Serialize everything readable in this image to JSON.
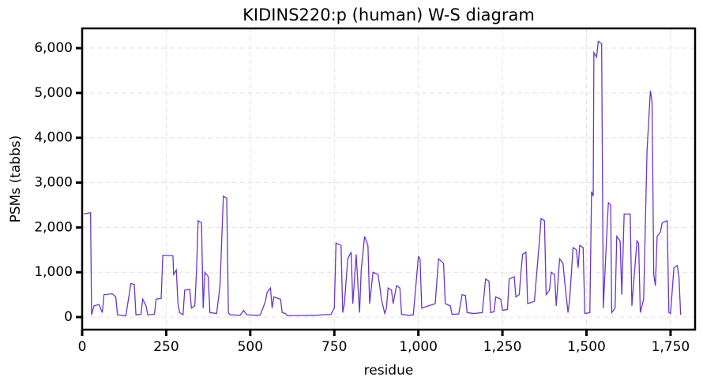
{
  "chart_data": {
    "type": "line",
    "title": "KIDINS220:p (human) W-S diagram",
    "xlabel": "residue",
    "ylabel": "PSMs (tabbs)",
    "x": [
      5,
      25,
      28,
      35,
      50,
      60,
      65,
      90,
      100,
      105,
      130,
      145,
      155,
      160,
      175,
      180,
      190,
      195,
      215,
      220,
      235,
      240,
      270,
      272,
      280,
      285,
      290,
      300,
      305,
      320,
      325,
      335,
      340,
      345,
      355,
      360,
      365,
      375,
      380,
      400,
      410,
      420,
      430,
      435,
      440,
      470,
      480,
      490,
      520,
      530,
      545,
      550,
      560,
      565,
      570,
      590,
      595,
      605,
      610,
      700,
      710,
      740,
      750,
      755,
      770,
      775,
      780,
      790,
      800,
      805,
      815,
      825,
      830,
      840,
      850,
      855,
      865,
      880,
      885,
      890,
      900,
      905,
      910,
      920,
      925,
      935,
      945,
      950,
      970,
      985,
      1000,
      1005,
      1010,
      1030,
      1050,
      1060,
      1075,
      1080,
      1095,
      1100,
      1120,
      1130,
      1140,
      1145,
      1165,
      1190,
      1200,
      1210,
      1215,
      1225,
      1230,
      1245,
      1250,
      1265,
      1270,
      1285,
      1290,
      1300,
      1305,
      1310,
      1320,
      1325,
      1345,
      1360,
      1365,
      1375,
      1380,
      1390,
      1395,
      1405,
      1410,
      1420,
      1430,
      1435,
      1445,
      1450,
      1460,
      1470,
      1475,
      1480,
      1490,
      1495,
      1510,
      1515,
      1520,
      1522,
      1530,
      1535,
      1545,
      1550,
      1560,
      1565,
      1572,
      1575,
      1585,
      1590,
      1600,
      1605,
      1612,
      1630,
      1635,
      1650,
      1655,
      1660,
      1670,
      1680,
      1690,
      1695,
      1700,
      1705,
      1710,
      1720,
      1725,
      1740,
      1745,
      1750,
      1760,
      1770,
      1775,
      1780
    ],
    "series": [
      {
        "name": "PSMs",
        "color": "#6a35c9",
        "values": [
          2300,
          2330,
          50,
          250,
          280,
          100,
          500,
          520,
          450,
          50,
          30,
          750,
          730,
          50,
          60,
          400,
          250,
          50,
          60,
          400,
          420,
          1380,
          1370,
          950,
          1050,
          300,
          100,
          50,
          600,
          620,
          200,
          250,
          1000,
          2150,
          2100,
          200,
          1000,
          900,
          100,
          80,
          700,
          2700,
          2650,
          100,
          50,
          40,
          150,
          50,
          40,
          50,
          350,
          550,
          650,
          200,
          450,
          400,
          100,
          80,
          30,
          40,
          50,
          60,
          200,
          1650,
          1600,
          100,
          300,
          1300,
          1450,
          300,
          1400,
          100,
          1050,
          1800,
          1600,
          300,
          1000,
          950,
          700,
          400,
          80,
          200,
          650,
          600,
          300,
          700,
          650,
          60,
          40,
          50,
          1350,
          1300,
          200,
          250,
          300,
          1300,
          1200,
          300,
          250,
          60,
          70,
          500,
          480,
          100,
          80,
          100,
          850,
          800,
          100,
          120,
          450,
          400,
          150,
          170,
          850,
          900,
          450,
          500,
          1000,
          1400,
          1450,
          300,
          350,
          1700,
          2200,
          2150,
          500,
          600,
          1000,
          950,
          250,
          1300,
          1200,
          800,
          100,
          400,
          1550,
          1500,
          1100,
          1600,
          1550,
          80,
          100,
          2800,
          2700,
          5900,
          5800,
          6150,
          6100,
          200,
          1800,
          2550,
          2500,
          100,
          200,
          1800,
          1700,
          500,
          2300,
          2300,
          250,
          1700,
          1650,
          100,
          400,
          3700,
          5050,
          4800,
          950,
          700,
          1800,
          1900,
          2100,
          2150,
          100,
          80,
          1100,
          1150,
          900,
          50
        ]
      }
    ],
    "xlim": [
      0,
      1823
    ],
    "ylim": [
      -280,
      6440
    ],
    "xticks": [
      0,
      250,
      500,
      750,
      {
        "value": 1000,
        "label": "1,000"
      },
      {
        "value": 1250,
        "label": "1,250"
      },
      {
        "value": 1500,
        "label": "1,500"
      },
      {
        "value": 1750,
        "label": "1,750"
      }
    ],
    "yticks": [
      0,
      {
        "value": 1000,
        "label": "1,000"
      },
      {
        "value": 2000,
        "label": "2,000"
      },
      {
        "value": 3000,
        "label": "3,000"
      },
      {
        "value": 4000,
        "label": "4,000"
      },
      {
        "value": 5000,
        "label": "5,000"
      },
      {
        "value": 6000,
        "label": "6,000"
      }
    ],
    "grid": true
  }
}
